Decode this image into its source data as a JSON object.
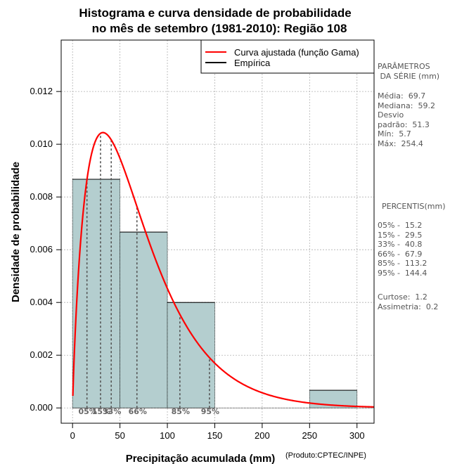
{
  "chart_data": {
    "type": "histogram",
    "title_line1": "Histograma e curva densidade de probabilidade",
    "title_line2": "no mês de setembro (1981-2010): Região 108",
    "xlabel": "Precipitação acumulada (mm)",
    "ylabel": "Densidade de probabilidade",
    "credit": "(Produto:CPTEC/INPE)",
    "xlim": [
      -12,
      318
    ],
    "ylim": [
      -0.00058,
      0.01395
    ],
    "x_ticks": [
      0,
      50,
      100,
      150,
      200,
      250,
      300
    ],
    "x_tick_labels": [
      "0",
      "50",
      "100",
      "150",
      "200",
      "250",
      "300"
    ],
    "y_ticks": [
      0.0,
      0.002,
      0.004,
      0.006,
      0.008,
      0.01,
      0.012
    ],
    "y_tick_labels": [
      "0.000",
      "0.002",
      "0.004",
      "0.006",
      "0.008",
      "0.010",
      "0.012"
    ],
    "bins": [
      {
        "x0": 0,
        "x1": 50,
        "density": 0.00867
      },
      {
        "x0": 50,
        "x1": 100,
        "density": 0.00667
      },
      {
        "x0": 100,
        "x1": 150,
        "density": 0.004
      },
      {
        "x0": 150,
        "x1": 200,
        "density": 0
      },
      {
        "x0": 200,
        "x1": 250,
        "density": 0
      },
      {
        "x0": 250,
        "x1": 300,
        "density": 0.00067
      }
    ],
    "gamma_fit": {
      "shape": 1.85,
      "scale": 37.7
    },
    "legend": {
      "position": "top-right",
      "entries": [
        {
          "label": "Curva ajustada (função Gama)",
          "color": "#ff0000"
        },
        {
          "label": "Empírica",
          "color": "#000000"
        }
      ]
    },
    "percentile_markers": [
      {
        "label": "05%",
        "value": 15.2
      },
      {
        "label": "15%",
        "value": 29.5
      },
      {
        "label": "33%",
        "value": 40.8
      },
      {
        "label": "66%",
        "value": 67.9
      },
      {
        "label": "85%",
        "value": 113.2
      },
      {
        "label": "95%",
        "value": 144.4
      }
    ]
  },
  "colors": {
    "bar_fill": "#b4cecf",
    "curve": "#ff0000",
    "grid": "#b0b0b0",
    "percentile_line": "#555555",
    "side_text": "#555555"
  },
  "side_panel": {
    "params_header": "PARÂMETROS\n DA SÉRIE (mm)",
    "params": "Média:  69.7\nMediana:  59.2\nDesvio\npadrão:  51.3\nMín:  5.7\nMáx:  254.4",
    "percentis_header": "PERCENTIS(mm)",
    "percentis": "05% -  15.2\n15% -  29.5\n33% -  40.8\n66% -  67.9\n85% -  113.2\n95% -  144.4",
    "stats": "Curtose:  1.2\nAssimetria:  0.2"
  }
}
